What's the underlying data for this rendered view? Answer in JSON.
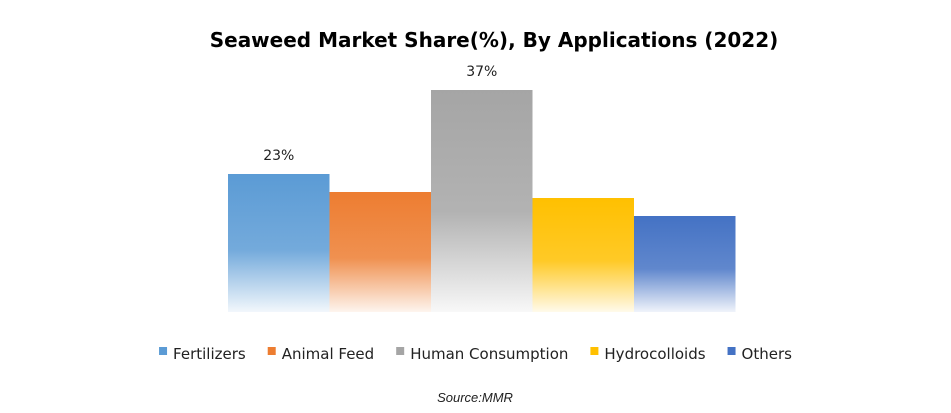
{
  "chart_data": {
    "type": "bar",
    "title": "Seaweed Market Share(%), By Applications  (2022)",
    "categories": [
      "Fertilizers",
      "Animal Feed",
      "Human Consumption",
      "Hydrocolloids",
      "Others"
    ],
    "values": [
      23,
      20,
      37,
      19,
      16
    ],
    "data_labels": [
      "23%",
      "",
      "37%",
      "",
      ""
    ],
    "colors": [
      "#5b9bd5",
      "#ed7d31",
      "#a5a5a5",
      "#ffc000",
      "#4472c4"
    ],
    "xlabel": "",
    "ylabel": "",
    "ylim": [
      0,
      40
    ],
    "grid": false,
    "legend_position": "bottom"
  },
  "source_text": "Source:MMR"
}
